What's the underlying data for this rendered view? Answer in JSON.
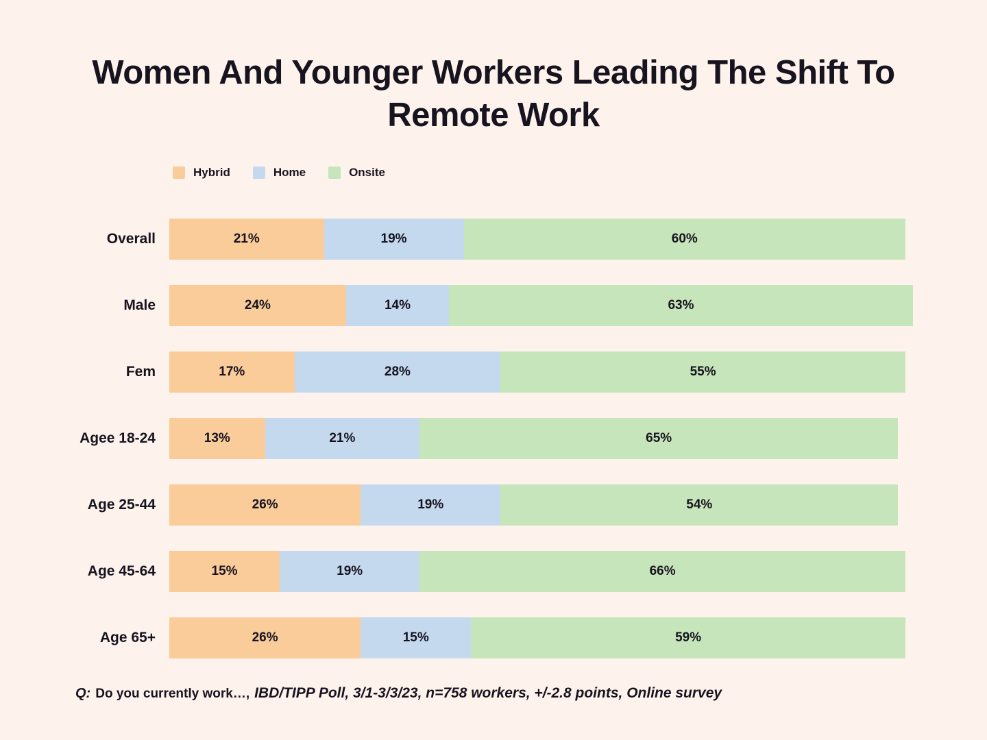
{
  "title": "Women And Younger Workers Leading The Shift To\nRemote Work",
  "legend": [
    {
      "label": "Hybrid",
      "color": "#F9CC9A"
    },
    {
      "label": "Home",
      "color": "#C4D9EE"
    },
    {
      "label": "Onsite",
      "color": "#C6E5BA"
    }
  ],
  "chart_data": {
    "type": "bar",
    "orientation": "horizontal",
    "stacked": true,
    "title": "Women And Younger Workers Leading The Shift To Remote Work",
    "categories": [
      "Overall",
      "Male",
      "Fem",
      "Agee 18-24",
      "Age 25-44",
      "Age 45-64",
      "Age 65+"
    ],
    "series": [
      {
        "name": "Hybrid",
        "color": "#F9CC9A",
        "values": [
          21,
          24,
          17,
          13,
          26,
          15,
          26
        ]
      },
      {
        "name": "Home",
        "color": "#C4D9EE",
        "values": [
          19,
          14,
          28,
          21,
          19,
          19,
          15
        ]
      },
      {
        "name": "Onsite",
        "color": "#C6E5BA",
        "values": [
          60,
          63,
          55,
          65,
          54,
          66,
          59
        ]
      }
    ],
    "value_suffix": "%",
    "xlim": [
      0,
      101
    ],
    "grid": false,
    "legend_position": "top-left",
    "value_labels": "inside-center"
  },
  "footer": {
    "q_label": "Q:",
    "q_text": "Do you currently work…,",
    "source_text": "IBD/TIPP Poll, 3/1-3/3/23, n=758 workers, +/-2.8 points, Online survey"
  },
  "colors": {
    "background": "#FDF3EC",
    "text": "#17131F"
  }
}
